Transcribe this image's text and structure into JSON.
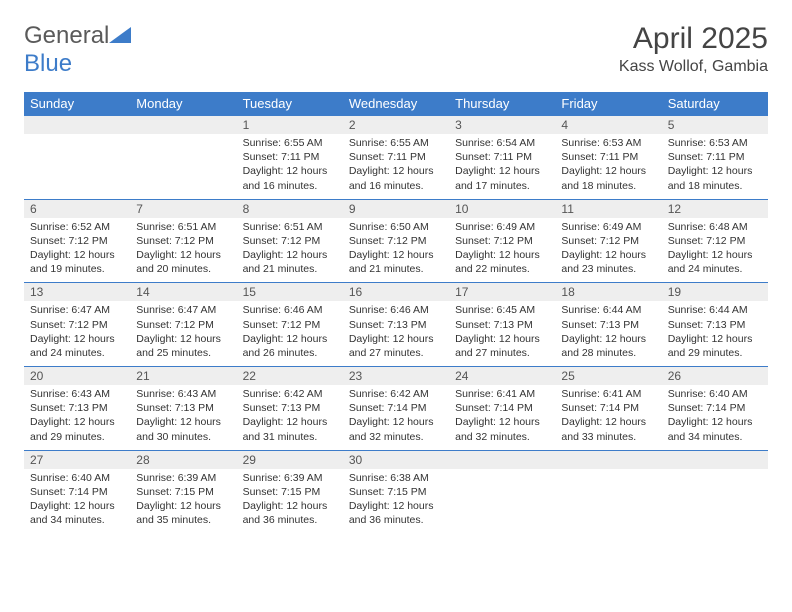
{
  "brand": {
    "part1": "General",
    "part2": "Blue"
  },
  "title": "April 2025",
  "location": "Kass Wollof, Gambia",
  "colors": {
    "header_bg": "#3d7cc9",
    "header_text": "#ffffff",
    "daynum_bg": "#eeeeee",
    "row_divider": "#3d7cc9",
    "body_text": "#333333",
    "background": "#ffffff"
  },
  "typography": {
    "title_fontsize": 30,
    "location_fontsize": 16,
    "header_fontsize": 13,
    "daynum_fontsize": 12,
    "cell_fontsize": 10.5
  },
  "day_headers": [
    "Sunday",
    "Monday",
    "Tuesday",
    "Wednesday",
    "Thursday",
    "Friday",
    "Saturday"
  ],
  "weeks": [
    [
      null,
      null,
      {
        "n": "1",
        "sr": "Sunrise: 6:55 AM",
        "ss": "Sunset: 7:11 PM",
        "d1": "Daylight: 12 hours",
        "d2": "and 16 minutes."
      },
      {
        "n": "2",
        "sr": "Sunrise: 6:55 AM",
        "ss": "Sunset: 7:11 PM",
        "d1": "Daylight: 12 hours",
        "d2": "and 16 minutes."
      },
      {
        "n": "3",
        "sr": "Sunrise: 6:54 AM",
        "ss": "Sunset: 7:11 PM",
        "d1": "Daylight: 12 hours",
        "d2": "and 17 minutes."
      },
      {
        "n": "4",
        "sr": "Sunrise: 6:53 AM",
        "ss": "Sunset: 7:11 PM",
        "d1": "Daylight: 12 hours",
        "d2": "and 18 minutes."
      },
      {
        "n": "5",
        "sr": "Sunrise: 6:53 AM",
        "ss": "Sunset: 7:11 PM",
        "d1": "Daylight: 12 hours",
        "d2": "and 18 minutes."
      }
    ],
    [
      {
        "n": "6",
        "sr": "Sunrise: 6:52 AM",
        "ss": "Sunset: 7:12 PM",
        "d1": "Daylight: 12 hours",
        "d2": "and 19 minutes."
      },
      {
        "n": "7",
        "sr": "Sunrise: 6:51 AM",
        "ss": "Sunset: 7:12 PM",
        "d1": "Daylight: 12 hours",
        "d2": "and 20 minutes."
      },
      {
        "n": "8",
        "sr": "Sunrise: 6:51 AM",
        "ss": "Sunset: 7:12 PM",
        "d1": "Daylight: 12 hours",
        "d2": "and 21 minutes."
      },
      {
        "n": "9",
        "sr": "Sunrise: 6:50 AM",
        "ss": "Sunset: 7:12 PM",
        "d1": "Daylight: 12 hours",
        "d2": "and 21 minutes."
      },
      {
        "n": "10",
        "sr": "Sunrise: 6:49 AM",
        "ss": "Sunset: 7:12 PM",
        "d1": "Daylight: 12 hours",
        "d2": "and 22 minutes."
      },
      {
        "n": "11",
        "sr": "Sunrise: 6:49 AM",
        "ss": "Sunset: 7:12 PM",
        "d1": "Daylight: 12 hours",
        "d2": "and 23 minutes."
      },
      {
        "n": "12",
        "sr": "Sunrise: 6:48 AM",
        "ss": "Sunset: 7:12 PM",
        "d1": "Daylight: 12 hours",
        "d2": "and 24 minutes."
      }
    ],
    [
      {
        "n": "13",
        "sr": "Sunrise: 6:47 AM",
        "ss": "Sunset: 7:12 PM",
        "d1": "Daylight: 12 hours",
        "d2": "and 24 minutes."
      },
      {
        "n": "14",
        "sr": "Sunrise: 6:47 AM",
        "ss": "Sunset: 7:12 PM",
        "d1": "Daylight: 12 hours",
        "d2": "and 25 minutes."
      },
      {
        "n": "15",
        "sr": "Sunrise: 6:46 AM",
        "ss": "Sunset: 7:12 PM",
        "d1": "Daylight: 12 hours",
        "d2": "and 26 minutes."
      },
      {
        "n": "16",
        "sr": "Sunrise: 6:46 AM",
        "ss": "Sunset: 7:13 PM",
        "d1": "Daylight: 12 hours",
        "d2": "and 27 minutes."
      },
      {
        "n": "17",
        "sr": "Sunrise: 6:45 AM",
        "ss": "Sunset: 7:13 PM",
        "d1": "Daylight: 12 hours",
        "d2": "and 27 minutes."
      },
      {
        "n": "18",
        "sr": "Sunrise: 6:44 AM",
        "ss": "Sunset: 7:13 PM",
        "d1": "Daylight: 12 hours",
        "d2": "and 28 minutes."
      },
      {
        "n": "19",
        "sr": "Sunrise: 6:44 AM",
        "ss": "Sunset: 7:13 PM",
        "d1": "Daylight: 12 hours",
        "d2": "and 29 minutes."
      }
    ],
    [
      {
        "n": "20",
        "sr": "Sunrise: 6:43 AM",
        "ss": "Sunset: 7:13 PM",
        "d1": "Daylight: 12 hours",
        "d2": "and 29 minutes."
      },
      {
        "n": "21",
        "sr": "Sunrise: 6:43 AM",
        "ss": "Sunset: 7:13 PM",
        "d1": "Daylight: 12 hours",
        "d2": "and 30 minutes."
      },
      {
        "n": "22",
        "sr": "Sunrise: 6:42 AM",
        "ss": "Sunset: 7:13 PM",
        "d1": "Daylight: 12 hours",
        "d2": "and 31 minutes."
      },
      {
        "n": "23",
        "sr": "Sunrise: 6:42 AM",
        "ss": "Sunset: 7:14 PM",
        "d1": "Daylight: 12 hours",
        "d2": "and 32 minutes."
      },
      {
        "n": "24",
        "sr": "Sunrise: 6:41 AM",
        "ss": "Sunset: 7:14 PM",
        "d1": "Daylight: 12 hours",
        "d2": "and 32 minutes."
      },
      {
        "n": "25",
        "sr": "Sunrise: 6:41 AM",
        "ss": "Sunset: 7:14 PM",
        "d1": "Daylight: 12 hours",
        "d2": "and 33 minutes."
      },
      {
        "n": "26",
        "sr": "Sunrise: 6:40 AM",
        "ss": "Sunset: 7:14 PM",
        "d1": "Daylight: 12 hours",
        "d2": "and 34 minutes."
      }
    ],
    [
      {
        "n": "27",
        "sr": "Sunrise: 6:40 AM",
        "ss": "Sunset: 7:14 PM",
        "d1": "Daylight: 12 hours",
        "d2": "and 34 minutes."
      },
      {
        "n": "28",
        "sr": "Sunrise: 6:39 AM",
        "ss": "Sunset: 7:15 PM",
        "d1": "Daylight: 12 hours",
        "d2": "and 35 minutes."
      },
      {
        "n": "29",
        "sr": "Sunrise: 6:39 AM",
        "ss": "Sunset: 7:15 PM",
        "d1": "Daylight: 12 hours",
        "d2": "and 36 minutes."
      },
      {
        "n": "30",
        "sr": "Sunrise: 6:38 AM",
        "ss": "Sunset: 7:15 PM",
        "d1": "Daylight: 12 hours",
        "d2": "and 36 minutes."
      },
      null,
      null,
      null
    ]
  ]
}
